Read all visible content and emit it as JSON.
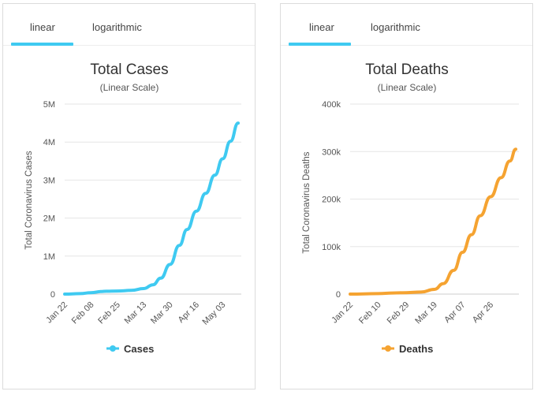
{
  "tabs": {
    "linear_label": "linear",
    "log_label": "logarithmic"
  },
  "chart_data": [
    {
      "type": "line",
      "title": "Total Cases",
      "subtitle": "(Linear Scale)",
      "ylabel": "Total Coronavirus Cases",
      "xlabel": "",
      "ylim": [
        0,
        5000000
      ],
      "y_ticks": [
        "0",
        "1M",
        "2M",
        "3M",
        "4M",
        "5M"
      ],
      "x_tick_labels": [
        "Jan 22",
        "Feb 08",
        "Feb 25",
        "Mar 13",
        "Mar 30",
        "Apr 16",
        "May 03"
      ],
      "legend": "bottom",
      "grid": true,
      "color": "#3fcaf1",
      "series": [
        {
          "name": "Cases",
          "x": [
            "Jan 22",
            "Feb 01",
            "Feb 08",
            "Feb 15",
            "Feb 18",
            "Feb 25",
            "Mar 05",
            "Mar 13",
            "Mar 19",
            "Mar 24",
            "Mar 30",
            "Apr 05",
            "Apr 10",
            "Apr 16",
            "Apr 22",
            "Apr 28",
            "May 03",
            "May 08",
            "May 13"
          ],
          "values": [
            600,
            12000,
            37000,
            69000,
            75000,
            80000,
            98000,
            146000,
            245000,
            420000,
            780000,
            1280000,
            1700000,
            2180000,
            2650000,
            3130000,
            3560000,
            4020000,
            4500000
          ]
        }
      ]
    },
    {
      "type": "line",
      "title": "Total Deaths",
      "subtitle": "(Linear Scale)",
      "ylabel": "Total Coronavirus Deaths",
      "xlabel": "",
      "ylim": [
        0,
        400000
      ],
      "y_ticks": [
        "0",
        "100k",
        "200k",
        "300k",
        "400k"
      ],
      "x_tick_labels": [
        "Jan 22",
        "Feb 10",
        "Feb 29",
        "Mar 19",
        "Apr 07",
        "Apr 26"
      ],
      "legend": "bottom",
      "grid": true,
      "color": "#f5a331",
      "series": [
        {
          "name": "Deaths",
          "x": [
            "Jan 22",
            "Feb 10",
            "Feb 20",
            "Feb 29",
            "Mar 10",
            "Mar 19",
            "Mar 25",
            "Apr 01",
            "Apr 07",
            "Apr 13",
            "Apr 19",
            "Apr 26",
            "May 03",
            "May 09",
            "May 13"
          ],
          "values": [
            17,
            1000,
            2250,
            3000,
            4300,
            10000,
            22000,
            50000,
            88000,
            125000,
            165000,
            205000,
            245000,
            280000,
            305000
          ]
        }
      ]
    }
  ]
}
